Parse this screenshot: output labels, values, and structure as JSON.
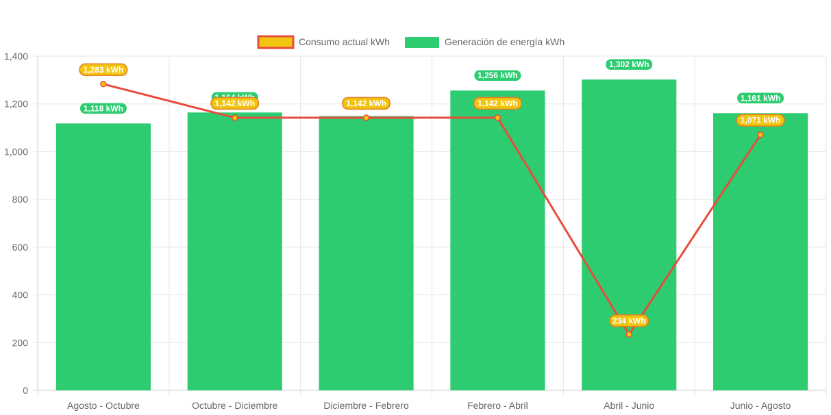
{
  "chart_data": {
    "type": "bar",
    "categories": [
      "Agosto - Octubre",
      "Octubre - Diciembre",
      "Diciembre - Febrero",
      "Febrero - Abril",
      "Abril - Junio",
      "Junio - Agosto"
    ],
    "series": [
      {
        "name": "Consumo actual kWh",
        "type": "line",
        "values": [
          1283,
          1142,
          1142,
          1142,
          234,
          1071
        ],
        "labels": [
          "1,283 kWh",
          "1,142 kWh",
          "1,142 kWh",
          "1,142 kWh",
          "234 kWh",
          "1,071 kWh"
        ],
        "color": "#e74c3c",
        "fill": "#f1c40f"
      },
      {
        "name": "Generación de energía kWh",
        "type": "bar",
        "values": [
          1118,
          1164,
          1149,
          1256,
          1302,
          1161
        ],
        "labels": [
          "1,118 kWh",
          "1,164 kWh",
          "",
          "1,256 kWh",
          "1,302 kWh",
          "1,161 kWh"
        ],
        "color": "#2ecc71"
      }
    ],
    "ylim": [
      0,
      1400
    ],
    "yticks": [
      "0",
      "200",
      "400",
      "600",
      "800",
      "1,000",
      "1,200",
      "1,400"
    ],
    "ytick_values": [
      0,
      200,
      400,
      600,
      800,
      1000,
      1200,
      1400
    ],
    "grid": true,
    "legend": "top-center",
    "title": "",
    "xlabel": "",
    "ylabel": ""
  }
}
